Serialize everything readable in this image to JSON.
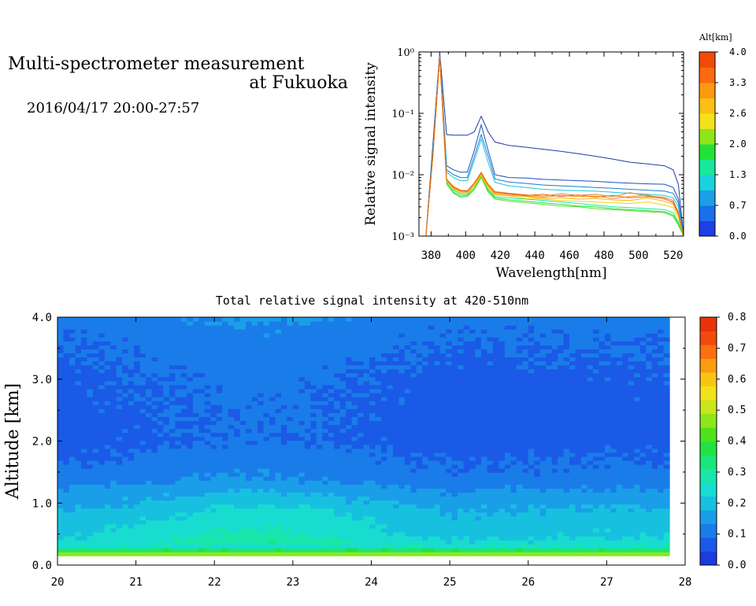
{
  "header": {
    "title_line1": "Multi-spectrometer measurement",
    "title_line2": "at Fukuoka",
    "subtitle": "2016/04/17 20:00-27:57"
  },
  "chart_data": [
    {
      "type": "line",
      "xlabel": "Wavelength[nm]",
      "ylabel": "Relative signal intensity",
      "yscale": "log",
      "xlim": [
        373,
        526
      ],
      "ylim": [
        0.001,
        1
      ],
      "x_ticks": [
        380,
        400,
        420,
        440,
        460,
        480,
        500,
        520
      ],
      "y_ticks": [
        {
          "value": 1,
          "label": "10⁰"
        },
        {
          "value": 0.1,
          "label": "10⁻¹"
        },
        {
          "value": 0.01,
          "label": "10⁻²"
        },
        {
          "value": 0.001,
          "label": "10⁻³"
        }
      ],
      "colorbar": {
        "title": "Alt[km]",
        "tick_labels": [
          "0.0",
          "0.7",
          "1.3",
          "2.0",
          "2.6",
          "3.3",
          "4.0"
        ],
        "colors": [
          "#1f3fe6",
          "#1a70e8",
          "#1aa0e8",
          "#1ad2dc",
          "#18e89a",
          "#22e23a",
          "#8ee61a",
          "#f2e21a",
          "#fbc012",
          "#fb9a10",
          "#fb6a10",
          "#f24a0a"
        ]
      },
      "x": [
        373,
        377,
        381,
        385,
        389,
        393,
        397,
        401,
        405,
        409,
        413,
        417,
        425,
        435,
        445,
        455,
        465,
        475,
        485,
        495,
        505,
        515,
        520,
        523,
        526
      ],
      "series": [
        {
          "color": "#1a3fa0",
          "values": [
            0.0005,
            0.001,
            0.03,
            1.0,
            0.045,
            0.044,
            0.044,
            0.044,
            0.05,
            0.09,
            0.05,
            0.034,
            0.03,
            0.028,
            0.026,
            0.024,
            0.022,
            0.02,
            0.018,
            0.016,
            0.015,
            0.014,
            0.012,
            0.007,
            0.001
          ]
        },
        {
          "color": "#1a50c0",
          "values": [
            0.0005,
            0.001,
            0.025,
            0.9,
            0.014,
            0.012,
            0.011,
            0.011,
            0.025,
            0.065,
            0.025,
            0.01,
            0.009,
            0.0088,
            0.0084,
            0.0082,
            0.008,
            0.0078,
            0.0075,
            0.0073,
            0.0071,
            0.007,
            0.0062,
            0.004,
            0.001
          ]
        },
        {
          "color": "#1a7ad0",
          "values": [
            0.0005,
            0.001,
            0.025,
            0.9,
            0.012,
            0.01,
            0.009,
            0.009,
            0.02,
            0.045,
            0.02,
            0.0085,
            0.0076,
            0.0072,
            0.0068,
            0.0066,
            0.0064,
            0.0062,
            0.006,
            0.0058,
            0.0056,
            0.0054,
            0.005,
            0.0035,
            0.001
          ]
        },
        {
          "color": "#18c8d8",
          "values": [
            0.0005,
            0.001,
            0.022,
            0.85,
            0.011,
            0.009,
            0.008,
            0.008,
            0.017,
            0.038,
            0.016,
            0.0075,
            0.0066,
            0.0062,
            0.0058,
            0.0056,
            0.0055,
            0.0054,
            0.0052,
            0.005,
            0.0048,
            0.0046,
            0.0042,
            0.003,
            0.001
          ]
        },
        {
          "color": "#18e89a",
          "values": [
            0.0005,
            0.001,
            0.02,
            0.85,
            0.008,
            0.0056,
            0.0048,
            0.0048,
            0.0065,
            0.01,
            0.0058,
            0.0044,
            0.0042,
            0.004,
            0.0038,
            0.0036,
            0.0034,
            0.0032,
            0.003,
            0.0029,
            0.0028,
            0.0027,
            0.0024,
            0.0017,
            0.001
          ]
        },
        {
          "color": "#22e23a",
          "values": [
            0.0005,
            0.001,
            0.02,
            0.85,
            0.0075,
            0.0052,
            0.0045,
            0.0046,
            0.006,
            0.0095,
            0.0055,
            0.0042,
            0.0039,
            0.0037,
            0.0035,
            0.0033,
            0.0031,
            0.003,
            0.0028,
            0.0027,
            0.0026,
            0.0025,
            0.0022,
            0.0016,
            0.001
          ]
        },
        {
          "color": "#60dc30",
          "values": [
            0.0005,
            0.001,
            0.02,
            0.85,
            0.007,
            0.005,
            0.0043,
            0.0044,
            0.0057,
            0.009,
            0.0052,
            0.004,
            0.0037,
            0.0035,
            0.0033,
            0.0031,
            0.003,
            0.0028,
            0.0027,
            0.0026,
            0.0025,
            0.0024,
            0.0021,
            0.0015,
            0.001
          ]
        },
        {
          "color": "#f2d21a",
          "values": [
            0.0005,
            0.001,
            0.02,
            0.85,
            0.0078,
            0.0058,
            0.005,
            0.005,
            0.0065,
            0.0098,
            0.006,
            0.0047,
            0.0045,
            0.0041,
            0.004,
            0.0038,
            0.0037,
            0.0036,
            0.0035,
            0.0034,
            0.0036,
            0.0032,
            0.0029,
            0.002,
            0.001
          ]
        },
        {
          "color": "#fbb012",
          "values": [
            0.0005,
            0.001,
            0.02,
            0.85,
            0.008,
            0.006,
            0.0052,
            0.0052,
            0.0068,
            0.0102,
            0.0064,
            0.0048,
            0.0046,
            0.0044,
            0.0041,
            0.0042,
            0.004,
            0.0041,
            0.0039,
            0.0038,
            0.0042,
            0.0037,
            0.0033,
            0.0022,
            0.001
          ]
        },
        {
          "color": "#fb8a10",
          "values": [
            0.0005,
            0.001,
            0.02,
            0.85,
            0.0082,
            0.0062,
            0.0054,
            0.0053,
            0.0072,
            0.0105,
            0.0067,
            0.005,
            0.0048,
            0.0045,
            0.0043,
            0.0046,
            0.0044,
            0.0045,
            0.0041,
            0.0044,
            0.0047,
            0.004,
            0.0036,
            0.0024,
            0.001
          ]
        },
        {
          "color": "#d28a3a",
          "values": [
            0.0005,
            0.001,
            0.02,
            0.85,
            0.0085,
            0.0064,
            0.0056,
            0.0055,
            0.0074,
            0.011,
            0.007,
            0.0053,
            0.005,
            0.0047,
            0.0045,
            0.0049,
            0.0046,
            0.0048,
            0.0044,
            0.0051,
            0.0045,
            0.0043,
            0.0038,
            0.0025,
            0.001
          ]
        },
        {
          "color": "#f26a12",
          "values": [
            0.0005,
            0.001,
            0.02,
            0.85,
            0.0083,
            0.0063,
            0.0055,
            0.0054,
            0.0073,
            0.0108,
            0.0069,
            0.0052,
            0.0049,
            0.0046,
            0.0048,
            0.0044,
            0.0047,
            0.0043,
            0.0046,
            0.0042,
            0.0044,
            0.0041,
            0.0035,
            0.0023,
            0.001
          ]
        }
      ]
    },
    {
      "type": "heatmap",
      "title": "Total relative signal intensity at 420-510nm",
      "xlabel": "",
      "ylabel": "Altitude [km]",
      "xlim": [
        20,
        28
      ],
      "ylim": [
        0,
        4
      ],
      "x_ticks": [
        20,
        21,
        22,
        23,
        24,
        25,
        26,
        27,
        28
      ],
      "y_ticks": [
        "0.0",
        "1.0",
        "2.0",
        "3.0",
        "4.0"
      ],
      "data_x_range": [
        20,
        27.8
      ],
      "data_y_range": [
        0.15,
        4.0
      ],
      "colorbar": {
        "range": [
          0,
          0.8
        ],
        "tick_labels": [
          "0.0",
          "0.1",
          "0.2",
          "0.3",
          "0.4",
          "0.5",
          "0.6",
          "0.7",
          "0.8"
        ],
        "colors": [
          "#1a3ce0",
          "#1a5ae6",
          "#1a7ce8",
          "#1a9ee8",
          "#18c0e0",
          "#18dcd0",
          "#18e6aa",
          "#1ae67a",
          "#22e244",
          "#4ee21a",
          "#8ee61a",
          "#c8e61a",
          "#f2e21a",
          "#fbc412",
          "#fb9c10",
          "#fb7010",
          "#f24a0a",
          "#e8320a"
        ]
      },
      "altitude_profile": [
        {
          "alt": 0.15,
          "value": 0.55
        },
        {
          "alt": 0.2,
          "value": 0.42
        },
        {
          "alt": 0.3,
          "value": 0.26
        },
        {
          "alt": 0.5,
          "value": 0.22
        },
        {
          "alt": 0.8,
          "value": 0.2
        },
        {
          "alt": 1.1,
          "value": 0.16
        },
        {
          "alt": 1.4,
          "value": 0.11
        },
        {
          "alt": 2.0,
          "value": 0.075
        },
        {
          "alt": 3.0,
          "value": 0.08
        },
        {
          "alt": 3.8,
          "value": 0.1
        },
        {
          "alt": 4.0,
          "value": 0.12
        }
      ],
      "time_modulation": [
        {
          "time": 20.0,
          "factor": 0.95
        },
        {
          "time": 21.0,
          "factor": 1.05
        },
        {
          "time": 22.0,
          "factor": 1.2
        },
        {
          "time": 22.6,
          "factor": 1.25
        },
        {
          "time": 23.2,
          "factor": 1.2
        },
        {
          "time": 24.0,
          "factor": 1.05
        },
        {
          "time": 25.0,
          "factor": 0.92
        },
        {
          "time": 26.0,
          "factor": 0.95
        },
        {
          "time": 27.0,
          "factor": 0.98
        },
        {
          "time": 27.8,
          "factor": 0.98
        }
      ]
    }
  ]
}
